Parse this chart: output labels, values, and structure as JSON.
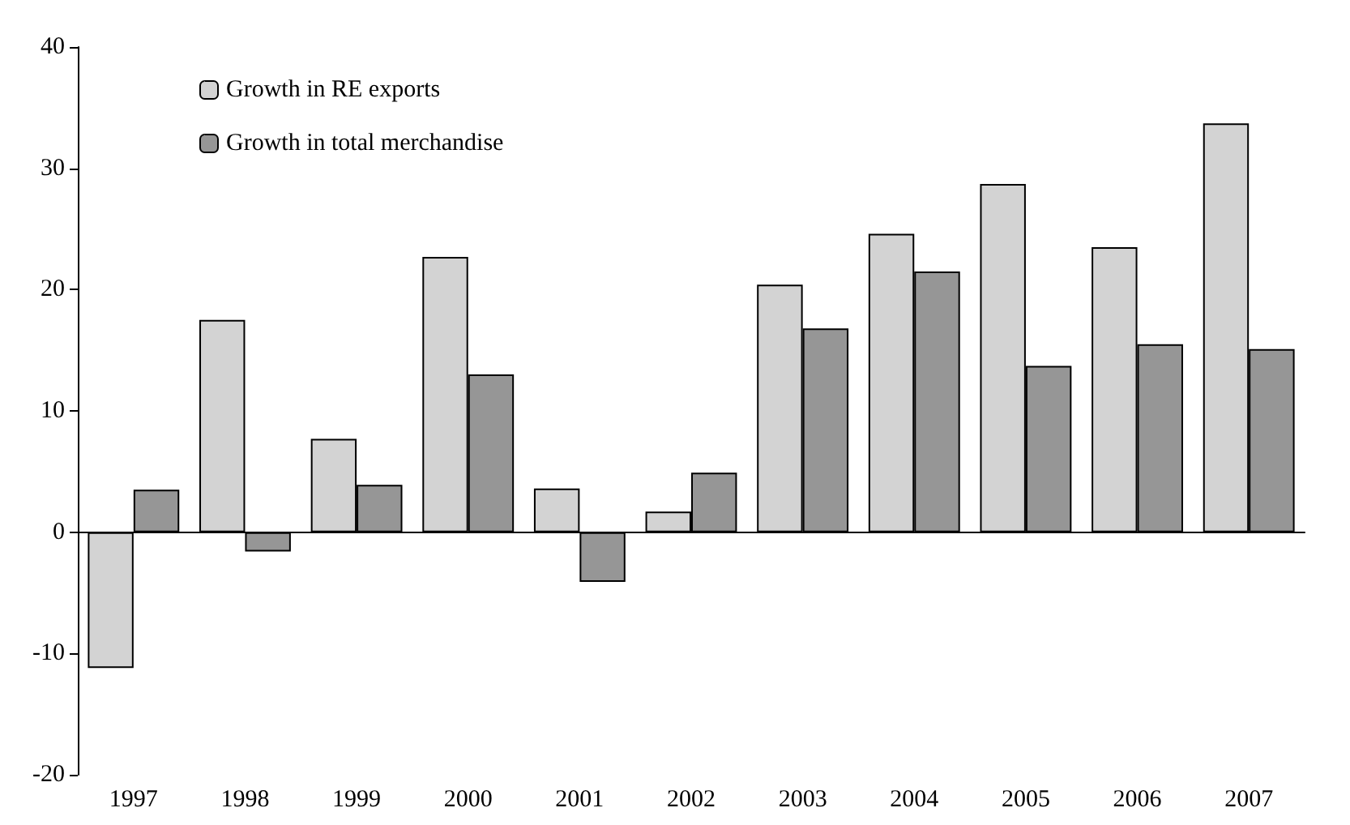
{
  "chart_data": {
    "type": "bar",
    "categories": [
      "1997",
      "1998",
      "1999",
      "2000",
      "2001",
      "2002",
      "2003",
      "2004",
      "2005",
      "2006",
      "2007"
    ],
    "series": [
      {
        "name": "Growth in RE exports",
        "color": "#d3d3d3",
        "values": [
          -11.2,
          17.5,
          7.7,
          22.7,
          3.6,
          1.7,
          20.4,
          24.6,
          28.7,
          23.5,
          33.7
        ]
      },
      {
        "name": "Growth in total merchandise",
        "color": "#969696",
        "values": [
          3.5,
          -1.6,
          3.9,
          13.0,
          -4.1,
          4.9,
          16.8,
          21.5,
          13.7,
          15.5,
          15.1
        ]
      }
    ],
    "ylim": [
      -20,
      40
    ],
    "yticks": [
      -20,
      -10,
      0,
      10,
      20,
      30,
      40
    ],
    "legend": "top left"
  }
}
